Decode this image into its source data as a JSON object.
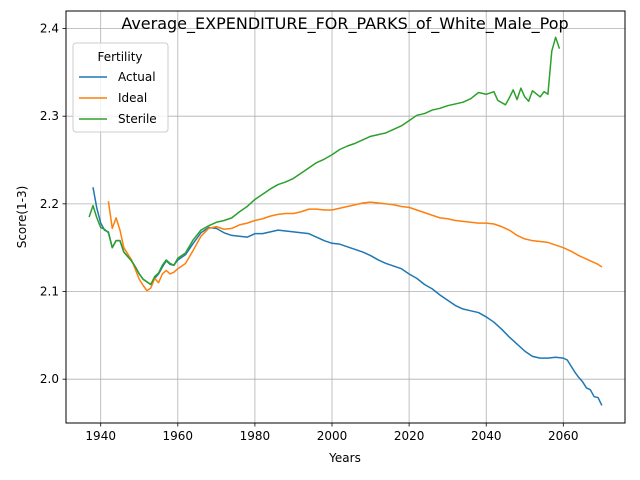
{
  "chart_data": {
    "type": "line",
    "title": "Average_EXPENDITURE_FOR_PARKS_of_White_Male_Pop",
    "xlabel": "Years",
    "ylabel": "Score(1-3)",
    "xlim": [
      1931,
      2076
    ],
    "ylim": [
      1.95,
      2.42
    ],
    "xticks": [
      1940,
      1960,
      1980,
      2000,
      2020,
      2040,
      2060
    ],
    "yticks": [
      2.0,
      2.1,
      2.2,
      2.3,
      2.4
    ],
    "xtick_labels": [
      "1940",
      "1960",
      "1980",
      "2000",
      "2020",
      "2040",
      "2060"
    ],
    "ytick_labels": [
      "2.0",
      "2.1",
      "2.2",
      "2.3",
      "2.4"
    ],
    "grid": true,
    "legend": {
      "title": "Fertility",
      "position": "top-left"
    },
    "series": [
      {
        "name": "Actual",
        "color": "#1f77b4",
        "points": [
          [
            1938,
            2.219
          ],
          [
            1939,
            2.195
          ],
          [
            1940,
            2.178
          ],
          [
            1941,
            2.17
          ],
          [
            1942,
            2.168
          ],
          [
            1943,
            2.15
          ],
          [
            1944,
            2.158
          ],
          [
            1945,
            2.158
          ],
          [
            1946,
            2.145
          ],
          [
            1947,
            2.14
          ],
          [
            1948,
            2.135
          ],
          [
            1949,
            2.128
          ],
          [
            1950,
            2.12
          ],
          [
            1951,
            2.114
          ],
          [
            1952,
            2.111
          ],
          [
            1953,
            2.108
          ],
          [
            1954,
            2.115
          ],
          [
            1955,
            2.12
          ],
          [
            1956,
            2.128
          ],
          [
            1957,
            2.135
          ],
          [
            1958,
            2.131
          ],
          [
            1959,
            2.13
          ],
          [
            1960,
            2.136
          ],
          [
            1962,
            2.142
          ],
          [
            1964,
            2.155
          ],
          [
            1966,
            2.167
          ],
          [
            1968,
            2.173
          ],
          [
            1970,
            2.172
          ],
          [
            1972,
            2.167
          ],
          [
            1974,
            2.164
          ],
          [
            1976,
            2.163
          ],
          [
            1978,
            2.162
          ],
          [
            1980,
            2.166
          ],
          [
            1982,
            2.166
          ],
          [
            1984,
            2.168
          ],
          [
            1986,
            2.17
          ],
          [
            1988,
            2.169
          ],
          [
            1990,
            2.168
          ],
          [
            1992,
            2.167
          ],
          [
            1994,
            2.166
          ],
          [
            1996,
            2.162
          ],
          [
            1998,
            2.158
          ],
          [
            2000,
            2.155
          ],
          [
            2002,
            2.154
          ],
          [
            2004,
            2.151
          ],
          [
            2006,
            2.148
          ],
          [
            2008,
            2.145
          ],
          [
            2010,
            2.141
          ],
          [
            2012,
            2.136
          ],
          [
            2014,
            2.132
          ],
          [
            2016,
            2.129
          ],
          [
            2018,
            2.126
          ],
          [
            2020,
            2.12
          ],
          [
            2022,
            2.115
          ],
          [
            2024,
            2.108
          ],
          [
            2026,
            2.103
          ],
          [
            2028,
            2.096
          ],
          [
            2030,
            2.09
          ],
          [
            2032,
            2.084
          ],
          [
            2034,
            2.08
          ],
          [
            2036,
            2.078
          ],
          [
            2038,
            2.076
          ],
          [
            2040,
            2.071
          ],
          [
            2042,
            2.065
          ],
          [
            2044,
            2.057
          ],
          [
            2046,
            2.048
          ],
          [
            2048,
            2.04
          ],
          [
            2050,
            2.032
          ],
          [
            2052,
            2.026
          ],
          [
            2054,
            2.024
          ],
          [
            2056,
            2.024
          ],
          [
            2058,
            2.025
          ],
          [
            2060,
            2.024
          ],
          [
            2061,
            2.022
          ],
          [
            2062,
            2.015
          ],
          [
            2063,
            2.008
          ],
          [
            2064,
            2.002
          ],
          [
            2065,
            1.997
          ],
          [
            2066,
            1.99
          ],
          [
            2067,
            1.988
          ],
          [
            2068,
            1.98
          ],
          [
            2069,
            1.979
          ],
          [
            2070,
            1.97
          ]
        ]
      },
      {
        "name": "Ideal",
        "color": "#ff7f0e",
        "points": [
          [
            1942,
            2.203
          ],
          [
            1943,
            2.172
          ],
          [
            1944,
            2.184
          ],
          [
            1945,
            2.17
          ],
          [
            1946,
            2.15
          ],
          [
            1947,
            2.143
          ],
          [
            1948,
            2.136
          ],
          [
            1949,
            2.125
          ],
          [
            1950,
            2.114
          ],
          [
            1951,
            2.107
          ],
          [
            1952,
            2.101
          ],
          [
            1953,
            2.104
          ],
          [
            1954,
            2.115
          ],
          [
            1955,
            2.11
          ],
          [
            1956,
            2.12
          ],
          [
            1957,
            2.124
          ],
          [
            1958,
            2.12
          ],
          [
            1959,
            2.122
          ],
          [
            1960,
            2.126
          ],
          [
            1962,
            2.132
          ],
          [
            1964,
            2.147
          ],
          [
            1966,
            2.163
          ],
          [
            1968,
            2.172
          ],
          [
            1970,
            2.174
          ],
          [
            1972,
            2.171
          ],
          [
            1974,
            2.172
          ],
          [
            1976,
            2.176
          ],
          [
            1978,
            2.178
          ],
          [
            1980,
            2.181
          ],
          [
            1982,
            2.183
          ],
          [
            1984,
            2.186
          ],
          [
            1986,
            2.188
          ],
          [
            1988,
            2.189
          ],
          [
            1990,
            2.189
          ],
          [
            1992,
            2.191
          ],
          [
            1994,
            2.194
          ],
          [
            1996,
            2.194
          ],
          [
            1998,
            2.193
          ],
          [
            2000,
            2.193
          ],
          [
            2002,
            2.195
          ],
          [
            2004,
            2.197
          ],
          [
            2006,
            2.199
          ],
          [
            2008,
            2.201
          ],
          [
            2010,
            2.202
          ],
          [
            2012,
            2.201
          ],
          [
            2014,
            2.2
          ],
          [
            2016,
            2.199
          ],
          [
            2018,
            2.197
          ],
          [
            2020,
            2.196
          ],
          [
            2022,
            2.193
          ],
          [
            2024,
            2.19
          ],
          [
            2026,
            2.187
          ],
          [
            2028,
            2.184
          ],
          [
            2030,
            2.183
          ],
          [
            2032,
            2.181
          ],
          [
            2034,
            2.18
          ],
          [
            2036,
            2.179
          ],
          [
            2038,
            2.178
          ],
          [
            2040,
            2.178
          ],
          [
            2042,
            2.177
          ],
          [
            2044,
            2.174
          ],
          [
            2046,
            2.17
          ],
          [
            2048,
            2.164
          ],
          [
            2050,
            2.16
          ],
          [
            2052,
            2.158
          ],
          [
            2054,
            2.157
          ],
          [
            2056,
            2.156
          ],
          [
            2058,
            2.153
          ],
          [
            2060,
            2.15
          ],
          [
            2062,
            2.146
          ],
          [
            2064,
            2.141
          ],
          [
            2066,
            2.137
          ],
          [
            2068,
            2.133
          ],
          [
            2069,
            2.131
          ],
          [
            2070,
            2.128
          ]
        ]
      },
      {
        "name": "Sterile",
        "color": "#2ca02c",
        "points": [
          [
            1937,
            2.185
          ],
          [
            1938,
            2.198
          ],
          [
            1939,
            2.184
          ],
          [
            1940,
            2.173
          ],
          [
            1941,
            2.171
          ],
          [
            1942,
            2.167
          ],
          [
            1943,
            2.15
          ],
          [
            1944,
            2.158
          ],
          [
            1945,
            2.158
          ],
          [
            1946,
            2.145
          ],
          [
            1947,
            2.14
          ],
          [
            1948,
            2.135
          ],
          [
            1949,
            2.128
          ],
          [
            1950,
            2.12
          ],
          [
            1951,
            2.114
          ],
          [
            1952,
            2.111
          ],
          [
            1953,
            2.108
          ],
          [
            1954,
            2.117
          ],
          [
            1955,
            2.121
          ],
          [
            1956,
            2.13
          ],
          [
            1957,
            2.136
          ],
          [
            1958,
            2.132
          ],
          [
            1959,
            2.13
          ],
          [
            1960,
            2.138
          ],
          [
            1962,
            2.144
          ],
          [
            1964,
            2.159
          ],
          [
            1966,
            2.17
          ],
          [
            1968,
            2.175
          ],
          [
            1970,
            2.179
          ],
          [
            1972,
            2.181
          ],
          [
            1974,
            2.184
          ],
          [
            1976,
            2.191
          ],
          [
            1978,
            2.197
          ],
          [
            1980,
            2.205
          ],
          [
            1982,
            2.211
          ],
          [
            1984,
            2.217
          ],
          [
            1986,
            2.222
          ],
          [
            1988,
            2.225
          ],
          [
            1990,
            2.229
          ],
          [
            1992,
            2.235
          ],
          [
            1994,
            2.241
          ],
          [
            1996,
            2.247
          ],
          [
            1998,
            2.251
          ],
          [
            2000,
            2.256
          ],
          [
            2002,
            2.262
          ],
          [
            2004,
            2.266
          ],
          [
            2006,
            2.269
          ],
          [
            2008,
            2.273
          ],
          [
            2010,
            2.277
          ],
          [
            2012,
            2.279
          ],
          [
            2014,
            2.281
          ],
          [
            2016,
            2.285
          ],
          [
            2018,
            2.289
          ],
          [
            2020,
            2.295
          ],
          [
            2022,
            2.301
          ],
          [
            2024,
            2.303
          ],
          [
            2026,
            2.307
          ],
          [
            2028,
            2.309
          ],
          [
            2030,
            2.312
          ],
          [
            2032,
            2.314
          ],
          [
            2034,
            2.316
          ],
          [
            2036,
            2.32
          ],
          [
            2038,
            2.327
          ],
          [
            2039,
            2.326
          ],
          [
            2040,
            2.325
          ],
          [
            2042,
            2.328
          ],
          [
            2043,
            2.318
          ],
          [
            2045,
            2.313
          ],
          [
            2046,
            2.321
          ],
          [
            2047,
            2.33
          ],
          [
            2048,
            2.319
          ],
          [
            2049,
            2.332
          ],
          [
            2050,
            2.322
          ],
          [
            2051,
            2.317
          ],
          [
            2052,
            2.329
          ],
          [
            2054,
            2.322
          ],
          [
            2055,
            2.328
          ],
          [
            2056,
            2.325
          ],
          [
            2057,
            2.374
          ],
          [
            2058,
            2.39
          ],
          [
            2059,
            2.377
          ]
        ]
      }
    ]
  }
}
